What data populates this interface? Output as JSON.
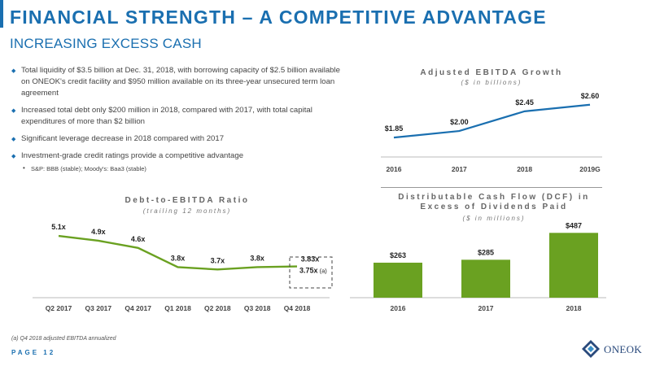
{
  "header": {
    "title": "FINANCIAL STRENGTH – A COMPETITIVE ADVANTAGE",
    "subtitle": "INCREASING EXCESS CASH"
  },
  "bullets": [
    "Total liquidity of $3.5 billion at Dec. 31, 2018, with borrowing capacity of $2.5 billion available on ONEOK's credit facility and $950 million available on its three-year unsecured term loan agreement",
    "Increased total debt only $200 million in 2018, compared with 2017, with total capital expenditures of more than $2 billion",
    "Significant leverage decrease in 2018 compared with 2017",
    "Investment-grade credit ratings provide a competitive advantage"
  ],
  "sub_bullet": "S&P: BBB (stable);  Moody's: Baa3 (stable)",
  "footnote": "(a) Q4 2018 adjusted EBITDA annualized",
  "page_label": "PAGE 12",
  "logo_text": "ONEOK",
  "colors": {
    "brand_blue": "#1a6fb0",
    "green": "#6aa121",
    "line_blue": "#1a6fb0"
  },
  "chart_data": [
    {
      "type": "line",
      "title": "Adjusted EBITDA Growth",
      "subtitle": "($ in billions)",
      "categories": [
        "2016",
        "2017",
        "2018",
        "2019G"
      ],
      "values": [
        1.85,
        2.0,
        2.45,
        2.6
      ],
      "labels": [
        "$1.85",
        "$2.00",
        "$2.45",
        "$2.60"
      ],
      "ylim": [
        1.5,
        2.8
      ]
    },
    {
      "type": "line",
      "title": "Debt-to-EBITDA Ratio",
      "subtitle": "(trailing 12 months)",
      "categories": [
        "Q2 2017",
        "Q3 2017",
        "Q4 2017",
        "Q1 2018",
        "Q2 2018",
        "Q3 2018",
        "Q4 2018"
      ],
      "values": [
        5.1,
        4.9,
        4.6,
        3.8,
        3.7,
        3.8,
        3.83
      ],
      "labels": [
        "5.1x",
        "4.9x",
        "4.6x",
        "3.8x",
        "3.7x",
        "3.8x",
        "3.83x"
      ],
      "annotation": "3.75x",
      "annotation_note": "(a)",
      "ylim": [
        3.0,
        5.5
      ]
    },
    {
      "type": "bar",
      "title": "Distributable Cash Flow (DCF) in Excess of Dividends Paid",
      "subtitle": "($ in millions)",
      "categories": [
        "2016",
        "2017",
        "2018"
      ],
      "values": [
        263,
        285,
        487
      ],
      "labels": [
        "$263",
        "$285",
        "$487"
      ],
      "ylim": [
        0,
        550
      ]
    }
  ]
}
